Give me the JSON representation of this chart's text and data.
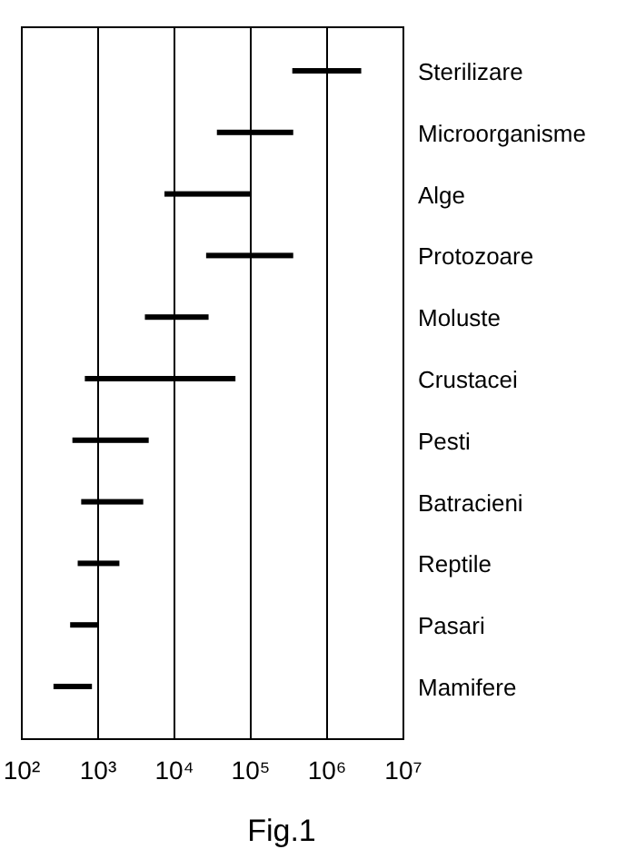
{
  "chart_data": {
    "type": "bar",
    "orientation": "horizontal",
    "title": "Fig.1",
    "categories": [
      "Sterilizare",
      "Microorganisme",
      "Alge",
      "Protozoare",
      "Moluste",
      "Crustacei",
      "Pesti",
      "Batracieni",
      "Reptile",
      "Pasari",
      "Mamifere"
    ],
    "base": [
      350000,
      36000,
      7400,
      26000,
      4100,
      670,
      460,
      600,
      540,
      430,
      260
    ],
    "values": [
      2450000,
      324000,
      92600,
      334000,
      23900,
      62330,
      4140,
      3300,
      1360,
      570,
      570
    ],
    "color": "#000000",
    "log": "x",
    "xlim": [
      100,
      10000000
    ],
    "xticks": [
      {
        "value": 100,
        "label": "10²"
      },
      {
        "value": 1000,
        "label": "10³"
      },
      {
        "value": 10000,
        "label": "10⁴"
      },
      {
        "value": 100000,
        "label": "10⁵"
      },
      {
        "value": 1000000,
        "label": "10⁶"
      },
      {
        "value": 10000000,
        "label": "10⁷"
      }
    ],
    "grid": "x"
  }
}
